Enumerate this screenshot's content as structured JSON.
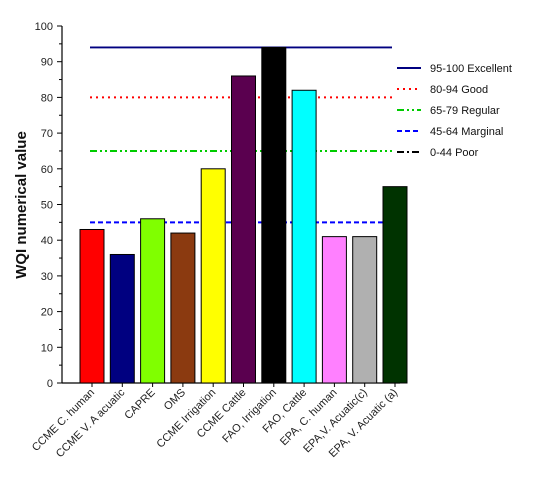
{
  "chart_data": {
    "type": "bar",
    "ylabel": "WQI numerical value",
    "xlabel": "",
    "ylim": [
      0,
      100
    ],
    "yticks": [
      "0",
      "10",
      "20",
      "30",
      "40",
      "50",
      "60",
      "70",
      "80",
      "90",
      "100"
    ],
    "categories": [
      "CCME C. human",
      "CCME V. A acuatic",
      "CAPRE",
      "OMS",
      "CCME Irrigation",
      "CCME Cattle",
      "FAO, Irrigation",
      "FAO, Cattle",
      "EPA, C. human",
      "EPA,V. Acuatic(c)",
      "EPA, V. Acuatic (a)"
    ],
    "values": [
      43,
      36,
      46,
      42,
      60,
      86,
      94,
      82,
      41,
      41,
      55
    ],
    "bar_colors": [
      "#ff0000",
      "#000080",
      "#80ff00",
      "#8b3a10",
      "#ffff00",
      "#5a004f",
      "#000000",
      "#00ffff",
      "#ff80ff",
      "#b0b0b0",
      "#003300"
    ],
    "reference_lines": [
      {
        "label": "95-100 Excellent",
        "value": 94,
        "color": "#000080",
        "style": "solid"
      },
      {
        "label": "80-94 Good",
        "value": 80,
        "color": "#ff0000",
        "style": "dot"
      },
      {
        "label": "65-79 Regular",
        "value": 65,
        "color": "#00cc00",
        "style": "dashdotdot"
      },
      {
        "label": "45-64 Marginal",
        "value": 45,
        "color": "#0000ff",
        "style": "dash"
      },
      {
        "label": "0-44 Poor",
        "value": null,
        "color": "#000000",
        "style": "dashdot"
      }
    ],
    "legend_position": "top-right",
    "grid": false
  }
}
